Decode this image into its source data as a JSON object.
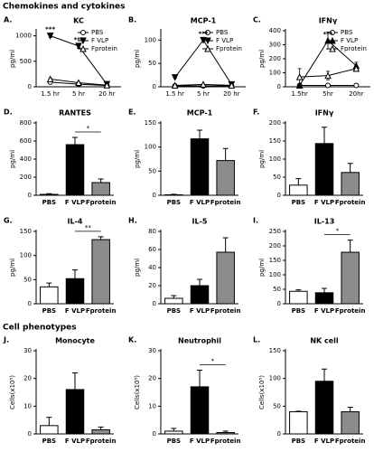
{
  "headings": [
    "Chemokines and cytokines",
    "Cell phenotypes"
  ],
  "chart_data": [
    {
      "type": "line",
      "label": "A.",
      "title": "KC",
      "y_label": "pg/ml",
      "categories": [
        "1.5 hr",
        "5 hr",
        "20 hr"
      ],
      "ylim": [
        0,
        1100
      ],
      "yticks": [
        0,
        500,
        1000
      ],
      "series": [
        {
          "name": "PBS",
          "color": "#000000",
          "marker": "circle-open",
          "values": [
            90,
            50,
            25
          ],
          "errors": [
            10,
            8,
            5
          ]
        },
        {
          "name": "F VLP",
          "color": "#000000",
          "marker": "triangle-down",
          "values": [
            1000,
            800,
            50
          ],
          "errors": [
            30,
            40,
            10
          ]
        },
        {
          "name": "Fprotein",
          "color": "#000000",
          "marker": "triangle-open",
          "values": [
            150,
            80,
            30
          ],
          "errors": [
            15,
            10,
            5
          ]
        }
      ],
      "annotations": [
        {
          "text": "***",
          "at": "1.5 hr",
          "series": "F VLP"
        },
        {
          "text": "***",
          "at": "5 hr",
          "series": "F VLP"
        }
      ]
    },
    {
      "type": "line",
      "label": "B.",
      "title": "MCP-1",
      "y_label": "pg/ml",
      "categories": [
        "1.5 hr",
        "5 hr",
        "20 hr"
      ],
      "ylim": [
        0,
        120
      ],
      "yticks": [
        0,
        50,
        100
      ],
      "series": [
        {
          "name": "PBS",
          "color": "#000000",
          "marker": "circle-open",
          "values": [
            2,
            2,
            2
          ],
          "errors": [
            1,
            1,
            1
          ]
        },
        {
          "name": "F VLP",
          "color": "#000000",
          "marker": "triangle-down",
          "values": [
            20,
            100,
            5
          ],
          "errors": [
            2,
            4,
            1
          ]
        },
        {
          "name": "Fprotein",
          "color": "#000000",
          "marker": "triangle-open",
          "values": [
            3,
            5,
            3
          ],
          "errors": [
            1,
            1,
            1
          ]
        }
      ],
      "annotations": [
        {
          "text": "***",
          "at": "5 hr",
          "series": "F VLP"
        }
      ]
    },
    {
      "type": "line",
      "label": "C.",
      "title": "IFNγ",
      "y_label": "pg/ml",
      "categories": [
        "1.5hr",
        "5hr",
        "20hr"
      ],
      "ylim": [
        0,
        400
      ],
      "yticks": [
        0,
        100,
        200,
        300,
        400
      ],
      "series": [
        {
          "name": "PBS",
          "color": "#000000",
          "marker": "circle-open",
          "values": [
            10,
            10,
            10
          ],
          "errors": [
            5,
            5,
            5
          ]
        },
        {
          "name": "F VLP",
          "color": "#000000",
          "marker": "triangle-up",
          "values": [
            10,
            330,
            150
          ],
          "errors": [
            8,
            60,
            25
          ]
        },
        {
          "name": "Fprotein",
          "color": "#000000",
          "marker": "triangle-open",
          "values": [
            70,
            80,
            130
          ],
          "errors": [
            60,
            30,
            20
          ]
        }
      ],
      "annotations": [
        {
          "text": "***",
          "at": "5hr",
          "series": "F VLP"
        }
      ]
    },
    {
      "type": "bar",
      "label": "D.",
      "title": "RANTES",
      "y_label": "pg/ml",
      "categories": [
        "PBS",
        "F VLP",
        "Fprotein"
      ],
      "colors": [
        "#ffffff",
        "#000000",
        "#8c8c8c"
      ],
      "ylim": [
        0,
        800
      ],
      "yticks": [
        0,
        200,
        400,
        600,
        800
      ],
      "values": [
        10,
        560,
        140
      ],
      "errors": [
        8,
        80,
        40
      ],
      "significance": [
        {
          "text": "*",
          "between": [
            "F VLP",
            "Fprotein"
          ]
        }
      ]
    },
    {
      "type": "bar",
      "label": "E.",
      "title": "MCP-1",
      "y_label": "pg/ml",
      "categories": [
        "PBS",
        "F VLP",
        "Fprotein"
      ],
      "colors": [
        "#ffffff",
        "#000000",
        "#8c8c8c"
      ],
      "ylim": [
        0,
        150
      ],
      "yticks": [
        0,
        50,
        100,
        150
      ],
      "values": [
        1,
        117,
        72
      ],
      "errors": [
        1,
        18,
        25
      ]
    },
    {
      "type": "bar",
      "label": "F.",
      "title": "IFNγ",
      "y_label": "pg/ml",
      "categories": [
        "PBS",
        "F VLP",
        "Fprotein"
      ],
      "colors": [
        "#ffffff",
        "#000000",
        "#8c8c8c"
      ],
      "ylim": [
        0,
        200
      ],
      "yticks": [
        0,
        50,
        100,
        150,
        200
      ],
      "values": [
        28,
        143,
        63
      ],
      "errors": [
        18,
        45,
        25
      ]
    },
    {
      "type": "bar",
      "label": "G.",
      "title": "IL-4",
      "y_label": "pg/ml",
      "categories": [
        "PBS",
        "F VLP",
        "Fprotein"
      ],
      "colors": [
        "#ffffff",
        "#000000",
        "#8c8c8c"
      ],
      "ylim": [
        0,
        150
      ],
      "yticks": [
        0,
        50,
        100,
        150
      ],
      "values": [
        35,
        52,
        133
      ],
      "errors": [
        8,
        18,
        6
      ],
      "significance": [
        {
          "text": "**",
          "between": [
            "F VLP",
            "Fprotein"
          ]
        }
      ]
    },
    {
      "type": "bar",
      "label": "H.",
      "title": "IL-5",
      "y_label": "pg/ml",
      "categories": [
        "PBS",
        "F VLP",
        "Fprotein"
      ],
      "colors": [
        "#ffffff",
        "#000000",
        "#8c8c8c"
      ],
      "ylim": [
        0,
        80
      ],
      "yticks": [
        0,
        20,
        40,
        60,
        80
      ],
      "values": [
        6,
        20,
        57
      ],
      "errors": [
        3,
        7,
        16
      ]
    },
    {
      "type": "bar",
      "label": "I.",
      "title": "IL-13",
      "y_label": "pg/ml",
      "categories": [
        "PBS",
        "F VLP",
        "Fprotein"
      ],
      "colors": [
        "#ffffff",
        "#000000",
        "#8c8c8c"
      ],
      "ylim": [
        0,
        250
      ],
      "yticks": [
        0,
        50,
        100,
        150,
        200,
        250
      ],
      "values": [
        43,
        38,
        178
      ],
      "errors": [
        5,
        15,
        42
      ],
      "significance": [
        {
          "text": "*",
          "between": [
            "F VLP",
            "Fprotein"
          ]
        }
      ]
    },
    {
      "type": "bar",
      "label": "J.",
      "title": "Monocyte",
      "y_label": "Cells(x10⁵)",
      "categories": [
        "PBS",
        "F VLP",
        "Fprotein"
      ],
      "colors": [
        "#ffffff",
        "#000000",
        "#8c8c8c"
      ],
      "ylim": [
        0,
        30
      ],
      "yticks": [
        0,
        10,
        20,
        30
      ],
      "values": [
        3,
        16,
        1.5
      ],
      "errors": [
        3,
        6,
        1
      ]
    },
    {
      "type": "bar",
      "label": "K.",
      "title": "Neutrophil",
      "y_label": "Cells(x10⁵)",
      "categories": [
        "PBS",
        "F VLP",
        "Fprotein"
      ],
      "colors": [
        "#ffffff",
        "#000000",
        "#8c8c8c"
      ],
      "ylim": [
        0,
        30
      ],
      "yticks": [
        0,
        10,
        20,
        30
      ],
      "values": [
        1,
        17,
        0.5
      ],
      "errors": [
        1,
        6,
        0.5
      ],
      "significance": [
        {
          "text": "*",
          "between": [
            "F VLP",
            "Fprotein"
          ]
        }
      ]
    },
    {
      "type": "bar",
      "label": "L.",
      "title": "NK cell",
      "y_label": "Cells(x10⁵)",
      "categories": [
        "PBS",
        "F VLP",
        "Fprotein"
      ],
      "colors": [
        "#ffffff",
        "#000000",
        "#8c8c8c"
      ],
      "ylim": [
        0,
        150
      ],
      "yticks": [
        0,
        50,
        100,
        150
      ],
      "values": [
        40,
        95,
        40
      ],
      "errors": [
        1,
        22,
        8
      ]
    }
  ]
}
